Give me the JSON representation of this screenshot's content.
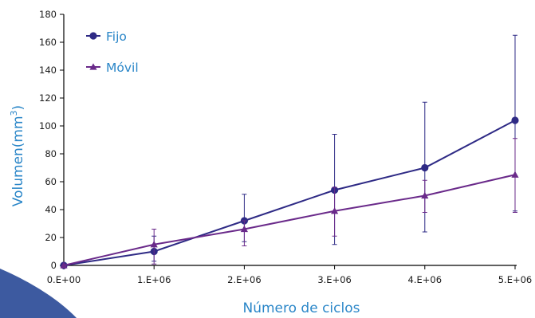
{
  "chart_data": {
    "type": "line",
    "xlabel": "Número de ciclos",
    "ylabel": "Volumen(mm",
    "ylabel_superscript": "3",
    "ylabel_close": ")",
    "x_tick_labels": [
      "0.E+00",
      "1.E+06",
      "2.E+06",
      "3.E+06",
      "4.E+06",
      "5.E+06"
    ],
    "x": [
      0,
      1000000,
      2000000,
      3000000,
      4000000,
      5000000
    ],
    "xlim": [
      0,
      5000000
    ],
    "ylim": [
      0,
      180
    ],
    "yticks": [
      0,
      20,
      40,
      60,
      80,
      100,
      120,
      140,
      160,
      180
    ],
    "grid": false,
    "legend_position": "top-left",
    "series": [
      {
        "name": "Fijo",
        "marker": "circle",
        "color": "#2e2a85",
        "values": [
          0,
          10,
          32,
          54,
          70,
          104
        ],
        "error_low": [
          0,
          7,
          15,
          39,
          46,
          65
        ],
        "error_high": [
          0,
          11,
          19,
          40,
          47,
          61
        ]
      },
      {
        "name": "Móvil",
        "marker": "triangle",
        "color": "#6a2a8a",
        "values": [
          0,
          15,
          26,
          39,
          50,
          65
        ],
        "error_low": [
          0,
          14,
          12,
          18,
          12,
          27
        ],
        "error_high": [
          0,
          11,
          6,
          17,
          11,
          26
        ]
      }
    ]
  },
  "colors": {
    "axis": "#000000",
    "title": "#2a86c8",
    "corner_decoration": "#3d5aa0"
  }
}
